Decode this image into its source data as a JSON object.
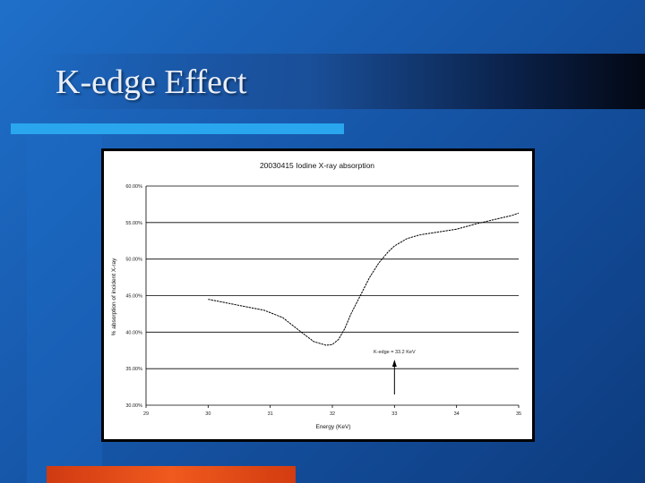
{
  "slide": {
    "title": "K-edge Effect"
  },
  "chart_data": {
    "type": "line",
    "title": "20030415 Iodine X-ray absorption",
    "xlabel": "Energy (KeV)",
    "ylabel": "% absorption of incident X-ray",
    "xlim": [
      29,
      35
    ],
    "ylim": [
      30,
      60
    ],
    "x_ticks": [
      29,
      30,
      31,
      32,
      33,
      34,
      35
    ],
    "x_tick_labels": [
      "29",
      "30",
      "31",
      "32",
      "33",
      "34",
      "35"
    ],
    "y_ticks": [
      30,
      35,
      40,
      45,
      50,
      55,
      60
    ],
    "y_tick_labels": [
      "30.00%",
      "35.00%",
      "40.00%",
      "45.00%",
      "50.00%",
      "55.00%",
      "60.00%"
    ],
    "grid": "horizontal",
    "series": [
      {
        "x": [
          30.0,
          30.3,
          30.6,
          30.9,
          31.2,
          31.5,
          31.7,
          31.9,
          32.0,
          32.1,
          32.2,
          32.3,
          32.45,
          32.6,
          32.75,
          32.9,
          33.0,
          33.2,
          33.4,
          33.7,
          34.0,
          34.3,
          34.6,
          34.9,
          35.0
        ],
        "y": [
          44.5,
          44.0,
          43.5,
          43.0,
          42.0,
          40.0,
          38.7,
          38.2,
          38.3,
          39.0,
          40.5,
          42.5,
          45.0,
          47.5,
          49.5,
          51.0,
          51.8,
          52.8,
          53.3,
          53.7,
          54.1,
          54.8,
          55.4,
          56.0,
          56.3
        ]
      }
    ],
    "annotation": {
      "text": "K-edge = 33.2 KeV",
      "x": 33.0
    }
  }
}
